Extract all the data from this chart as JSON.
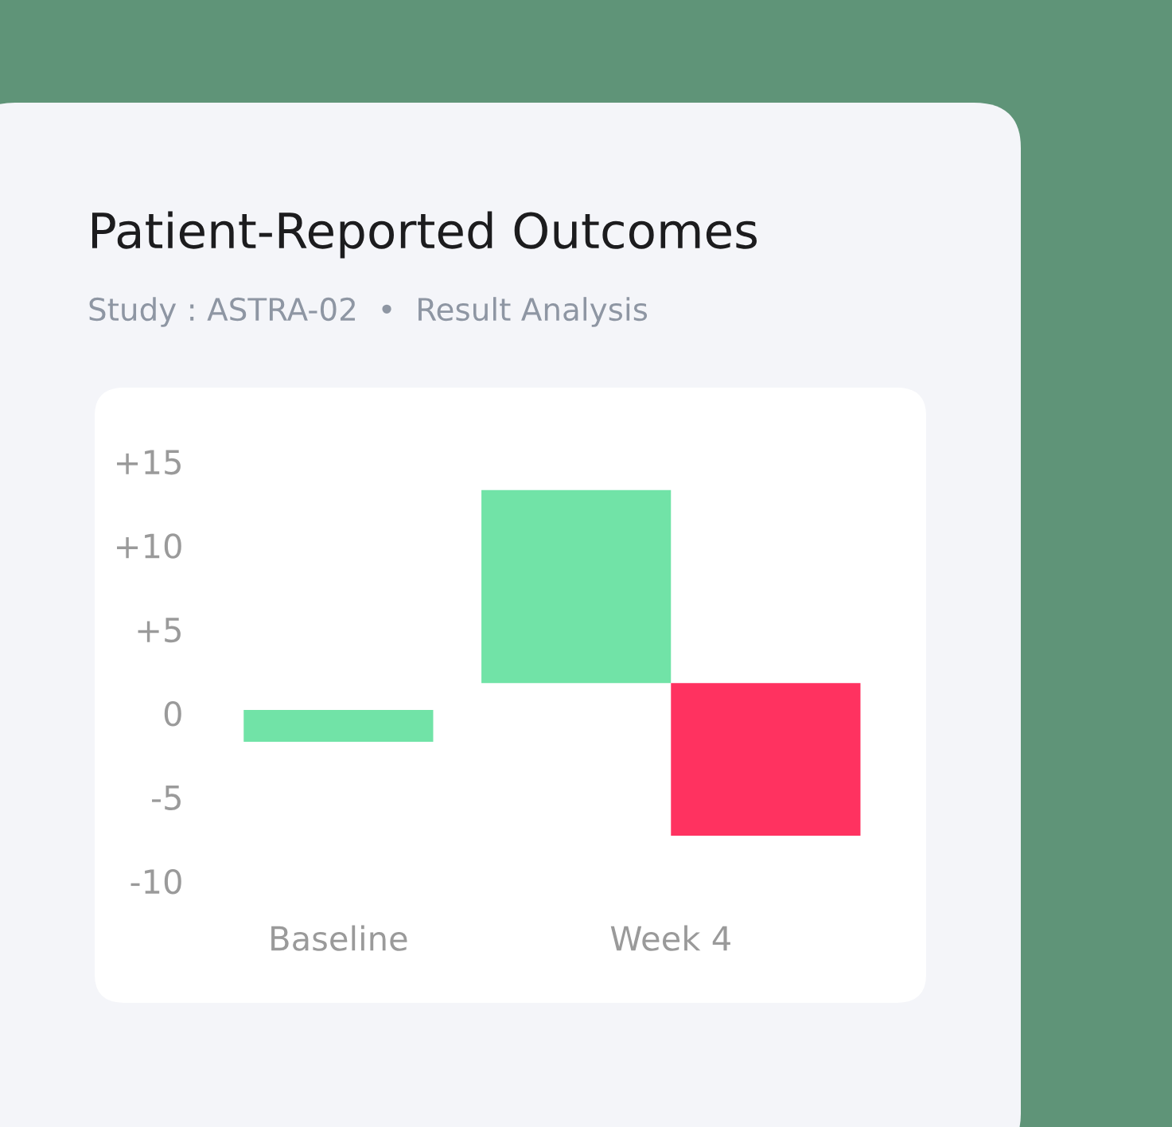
{
  "chart_data": {
    "type": "bar",
    "title": "Patient-Reported Outcomes",
    "subtitle": "Study : ASTRA-02  •  Result Analysis",
    "categories": [
      "Baseline",
      "Week 4"
    ],
    "series": [
      {
        "color": "#71e3a7",
        "values": [
          1.9,
          11.5
        ],
        "base": [
          -1.7,
          1.8
        ]
      },
      {
        "color": "#ff3260",
        "values": [
          null,
          -9.1
        ],
        "base": [
          null,
          1.8
        ]
      }
    ],
    "ylim": [
      -10,
      15
    ],
    "yticks": [
      {
        "value": 15,
        "label": "+15"
      },
      {
        "value": 10,
        "label": "+10"
      },
      {
        "value": 5,
        "label": "+5"
      },
      0,
      -5,
      -10
    ],
    "grid": false,
    "legend": false
  }
}
